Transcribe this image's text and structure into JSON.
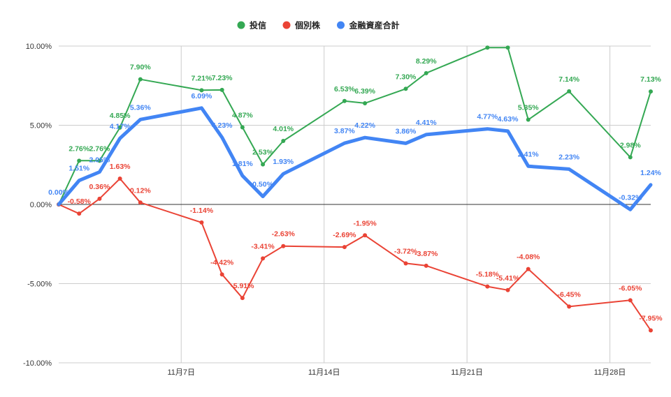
{
  "chart_data": {
    "type": "line",
    "legend_position": "top",
    "grid": true,
    "ylim": [
      -10,
      10
    ],
    "xlim": [
      "2023-11-01",
      "2023-11-30"
    ],
    "y_ticks": [
      "10.00%",
      "5.00%",
      "0.00%",
      "-5.00%",
      "-10.00%"
    ],
    "y_tick_values": [
      10,
      5,
      0,
      -5,
      -10
    ],
    "x_ticks": [
      {
        "label": "11月7日",
        "date": "2023-11-07"
      },
      {
        "label": "11月14日",
        "date": "2023-11-14"
      },
      {
        "label": "11月21日",
        "date": "2023-11-21"
      },
      {
        "label": "11月28日",
        "date": "2023-11-28"
      }
    ],
    "series": [
      {
        "name": "投信",
        "color": "#34a853",
        "points": [
          {
            "x": "2023-11-01",
            "y": 0.0,
            "label": ""
          },
          {
            "x": "2023-11-02",
            "y": 2.76,
            "label": "2.76%"
          },
          {
            "x": "2023-11-03",
            "y": 2.76,
            "label": "2.76%"
          },
          {
            "x": "2023-11-04",
            "y": 4.85,
            "label": "4.85%"
          },
          {
            "x": "2023-11-05",
            "y": 7.9,
            "label": "7.90%"
          },
          {
            "x": "2023-11-08",
            "y": 7.21,
            "label": "7.21%"
          },
          {
            "x": "2023-11-09",
            "y": 7.23,
            "label": "7.23%"
          },
          {
            "x": "2023-11-10",
            "y": 4.87,
            "label": "4.87%"
          },
          {
            "x": "2023-11-11",
            "y": 2.53,
            "label": "2.53%"
          },
          {
            "x": "2023-11-12",
            "y": 4.01,
            "label": "4.01%"
          },
          {
            "x": "2023-11-15",
            "y": 6.53,
            "label": "6.53%"
          },
          {
            "x": "2023-11-16",
            "y": 6.39,
            "label": "6.39%"
          },
          {
            "x": "2023-11-18",
            "y": 7.3,
            "label": "7.30%"
          },
          {
            "x": "2023-11-19",
            "y": 8.29,
            "label": "8.29%"
          },
          {
            "x": "2023-11-22",
            "y": 9.9,
            "label": ""
          },
          {
            "x": "2023-11-23",
            "y": 9.9,
            "label": ""
          },
          {
            "x": "2023-11-24",
            "y": 5.35,
            "label": "5.35%"
          },
          {
            "x": "2023-11-26",
            "y": 7.14,
            "label": "7.14%"
          },
          {
            "x": "2023-11-29",
            "y": 2.98,
            "label": "2.98%"
          },
          {
            "x": "2023-11-30",
            "y": 7.13,
            "label": "7.13%"
          }
        ]
      },
      {
        "name": "個別株",
        "color": "#ea4335",
        "points": [
          {
            "x": "2023-11-01",
            "y": 0.0,
            "label": ""
          },
          {
            "x": "2023-11-02",
            "y": -0.58,
            "label": "-0.58%"
          },
          {
            "x": "2023-11-03",
            "y": 0.36,
            "label": "0.36%"
          },
          {
            "x": "2023-11-04",
            "y": 1.63,
            "label": "1.63%"
          },
          {
            "x": "2023-11-05",
            "y": 0.12,
            "label": "0.12%"
          },
          {
            "x": "2023-11-08",
            "y": -1.14,
            "label": "-1.14%"
          },
          {
            "x": "2023-11-09",
            "y": -4.42,
            "label": "-4.42%"
          },
          {
            "x": "2023-11-10",
            "y": -5.91,
            "label": "-5.91%"
          },
          {
            "x": "2023-11-11",
            "y": -3.41,
            "label": "-3.41%"
          },
          {
            "x": "2023-11-12",
            "y": -2.63,
            "label": "-2.63%"
          },
          {
            "x": "2023-11-15",
            "y": -2.69,
            "label": "-2.69%"
          },
          {
            "x": "2023-11-16",
            "y": -1.95,
            "label": "-1.95%"
          },
          {
            "x": "2023-11-18",
            "y": -3.72,
            "label": "-3.72%"
          },
          {
            "x": "2023-11-19",
            "y": -3.87,
            "label": "-3.87%"
          },
          {
            "x": "2023-11-22",
            "y": -5.18,
            "label": "-5.18%"
          },
          {
            "x": "2023-11-23",
            "y": -5.41,
            "label": "-5.41%"
          },
          {
            "x": "2023-11-24",
            "y": -4.08,
            "label": "-4.08%"
          },
          {
            "x": "2023-11-26",
            "y": -6.45,
            "label": "-6.45%"
          },
          {
            "x": "2023-11-29",
            "y": -6.05,
            "label": "-6.05%"
          },
          {
            "x": "2023-11-30",
            "y": -7.95,
            "label": "-7.95%"
          }
        ]
      },
      {
        "name": "金融資産合計",
        "color": "#4285f4",
        "points": [
          {
            "x": "2023-11-01",
            "y": 0.0,
            "label": "0.00%"
          },
          {
            "x": "2023-11-02",
            "y": 1.51,
            "label": "1.51%"
          },
          {
            "x": "2023-11-03",
            "y": 2.05,
            "label": "2.05%"
          },
          {
            "x": "2023-11-04",
            "y": 4.17,
            "label": "4.17%"
          },
          {
            "x": "2023-11-05",
            "y": 5.36,
            "label": "5.36%"
          },
          {
            "x": "2023-11-08",
            "y": 6.09,
            "label": "6.09%"
          },
          {
            "x": "2023-11-09",
            "y": 4.23,
            "label": "4.23%"
          },
          {
            "x": "2023-11-10",
            "y": 1.81,
            "label": "1.81%"
          },
          {
            "x": "2023-11-11",
            "y": 0.5,
            "label": "0.50%"
          },
          {
            "x": "2023-11-12",
            "y": 1.93,
            "label": "1.93%"
          },
          {
            "x": "2023-11-15",
            "y": 3.87,
            "label": "3.87%"
          },
          {
            "x": "2023-11-16",
            "y": 4.22,
            "label": "4.22%"
          },
          {
            "x": "2023-11-18",
            "y": 3.86,
            "label": "3.86%"
          },
          {
            "x": "2023-11-19",
            "y": 4.41,
            "label": "4.41%"
          },
          {
            "x": "2023-11-22",
            "y": 4.77,
            "label": "4.77%"
          },
          {
            "x": "2023-11-23",
            "y": 4.63,
            "label": "4.63%"
          },
          {
            "x": "2023-11-24",
            "y": 2.41,
            "label": "2.41%"
          },
          {
            "x": "2023-11-26",
            "y": 2.23,
            "label": "2.23%"
          },
          {
            "x": "2023-11-29",
            "y": -0.32,
            "label": "-0.32%"
          },
          {
            "x": "2023-11-30",
            "y": 1.24,
            "label": "1.24%"
          }
        ]
      }
    ]
  }
}
